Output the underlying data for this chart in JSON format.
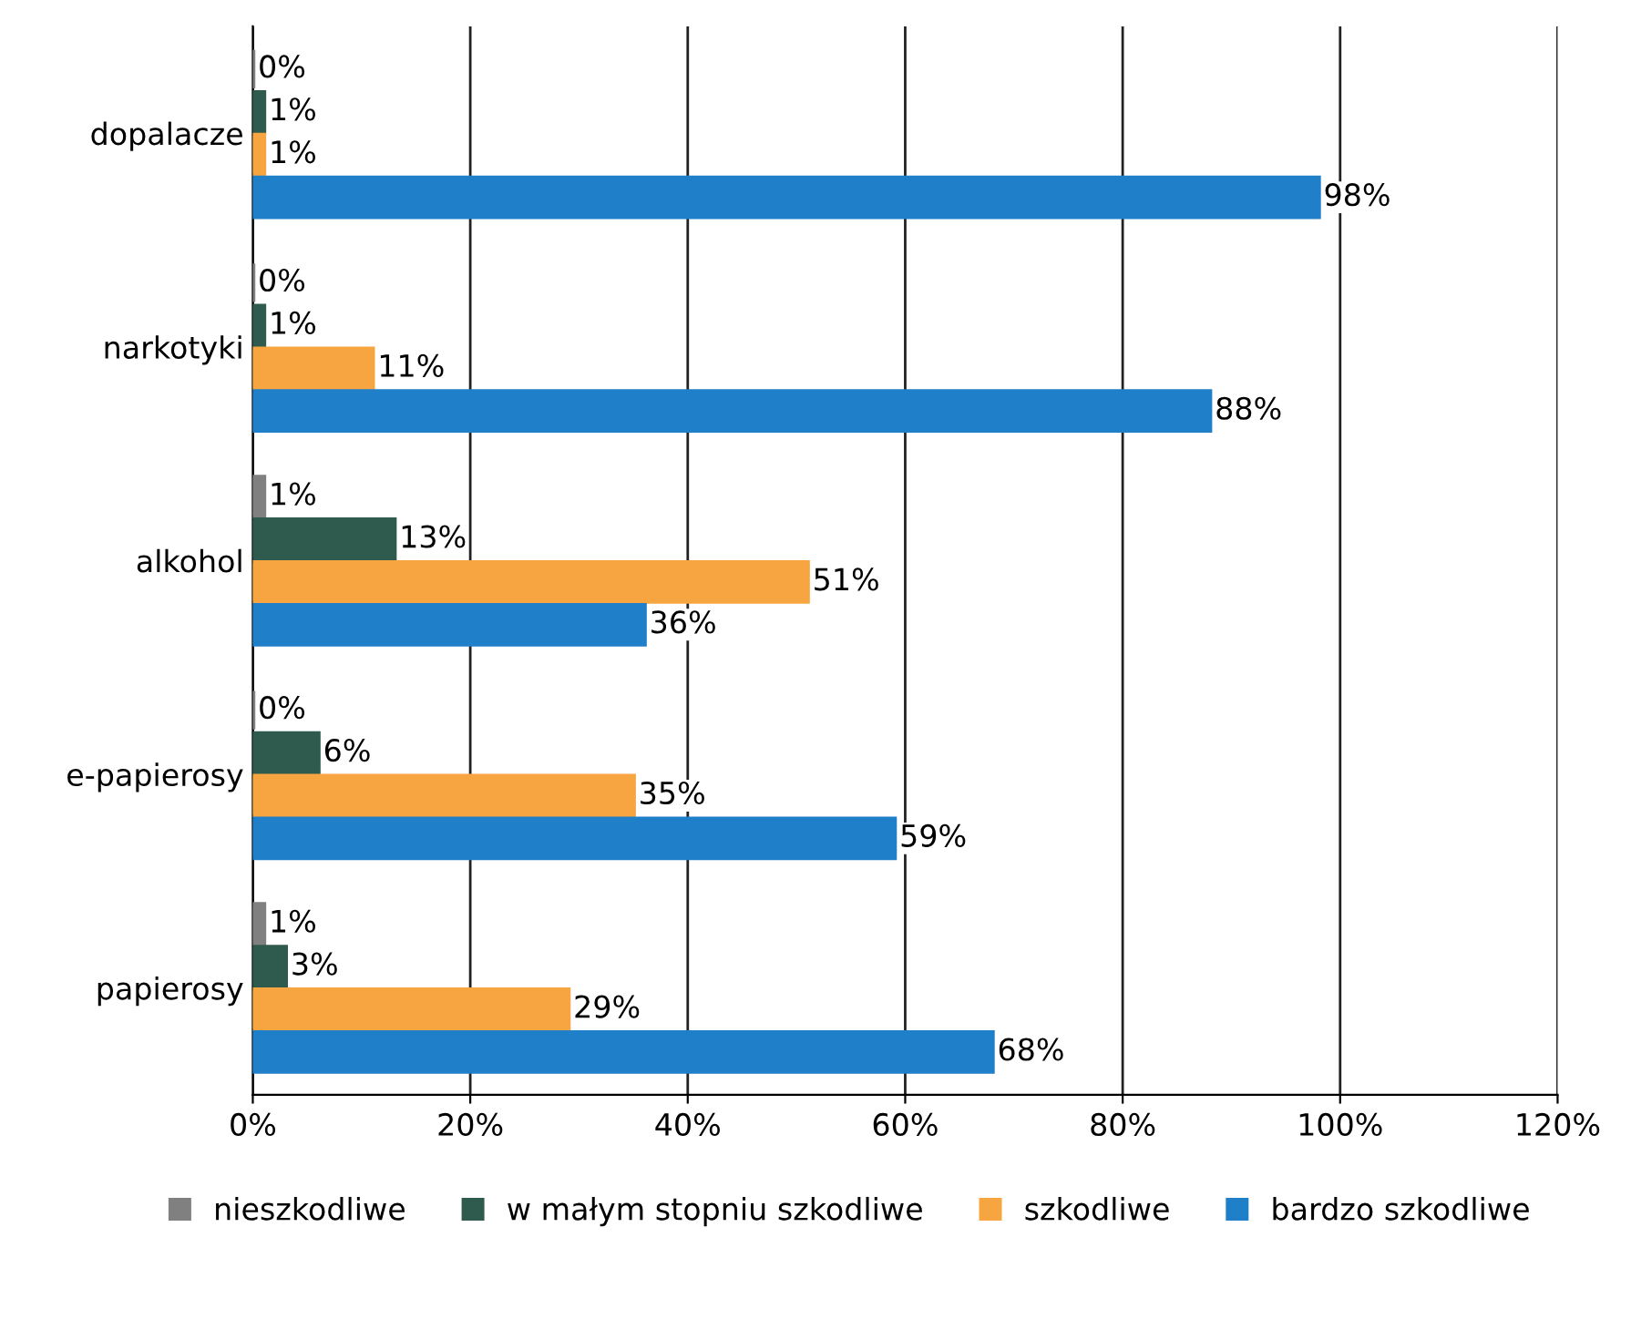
{
  "chart_data": {
    "type": "bar",
    "orientation": "horizontal",
    "categories": [
      "dopalacze",
      "narkotyki",
      "alkohol",
      "e-papierosy",
      "papierosy"
    ],
    "series": [
      {
        "name": "nieszkodliwe",
        "color": "#808080",
        "values": [
          0,
          0,
          1,
          0,
          1
        ],
        "value_labels": [
          "0%",
          "0%",
          "1%",
          "0%",
          "1%"
        ]
      },
      {
        "name": "w małym stopniu szkodliwe",
        "color": "#2f5b4f",
        "values": [
          1,
          1,
          13,
          6,
          3
        ],
        "value_labels": [
          "1%",
          "1%",
          "13%",
          "6%",
          "3%"
        ]
      },
      {
        "name": "szkodliwe",
        "color": "#f7a540",
        "values": [
          1,
          11,
          51,
          35,
          29
        ],
        "value_labels": [
          "1%",
          "11%",
          "51%",
          "35%",
          "29%"
        ]
      },
      {
        "name": "bardzo szkodliwe",
        "color": "#1f7fc8",
        "values": [
          98,
          88,
          36,
          59,
          68
        ],
        "value_labels": [
          "98%",
          "88%",
          "36%",
          "59%",
          "68%"
        ]
      }
    ],
    "xlim": [
      0,
      120
    ],
    "xticks": [
      {
        "value": 0,
        "label": "0%"
      },
      {
        "value": 20,
        "label": "20%"
      },
      {
        "value": 40,
        "label": "40%"
      },
      {
        "value": 60,
        "label": "60%"
      },
      {
        "value": 80,
        "label": "80%"
      },
      {
        "value": 100,
        "label": "100%"
      },
      {
        "value": 120,
        "label": "120%"
      }
    ],
    "grid": "x",
    "legend": "bottom"
  }
}
